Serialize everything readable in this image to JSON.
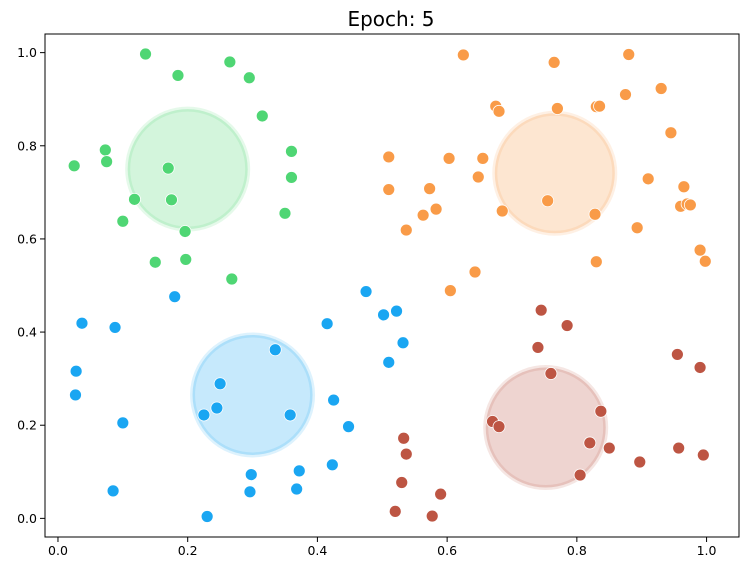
{
  "chart_data": {
    "type": "scatter",
    "title": "Epoch: 5",
    "xlabel": "",
    "ylabel": "",
    "xlim": [
      -0.02,
      1.05
    ],
    "ylim": [
      -0.04,
      1.04
    ],
    "xticks": [
      "0.0",
      "0.2",
      "0.4",
      "0.6",
      "0.8",
      "1.0"
    ],
    "yticks": [
      "0.0",
      "0.2",
      "0.4",
      "0.6",
      "0.8",
      "1.0"
    ],
    "grid": false,
    "legend": "none",
    "series": [
      {
        "color": "#4fd674",
        "points": [
          [
            0.135,
            0.997
          ],
          [
            0.185,
            0.951
          ],
          [
            0.265,
            0.98
          ],
          [
            0.295,
            0.946
          ],
          [
            0.315,
            0.864
          ],
          [
            0.025,
            0.757
          ],
          [
            0.073,
            0.791
          ],
          [
            0.075,
            0.766
          ],
          [
            0.17,
            0.752
          ],
          [
            0.36,
            0.788
          ],
          [
            0.36,
            0.732
          ],
          [
            0.118,
            0.685
          ],
          [
            0.175,
            0.684
          ],
          [
            0.35,
            0.655
          ],
          [
            0.1,
            0.638
          ],
          [
            0.196,
            0.616
          ],
          [
            0.15,
            0.55
          ],
          [
            0.197,
            0.556
          ],
          [
            0.268,
            0.514
          ]
        ]
      },
      {
        "color": "#f99b48",
        "points": [
          [
            0.625,
            0.995
          ],
          [
            0.765,
            0.979
          ],
          [
            0.88,
            0.996
          ],
          [
            0.93,
            0.923
          ],
          [
            0.675,
            0.885
          ],
          [
            0.68,
            0.874
          ],
          [
            0.77,
            0.88
          ],
          [
            0.83,
            0.884
          ],
          [
            0.835,
            0.885
          ],
          [
            0.875,
            0.91
          ],
          [
            0.945,
            0.828
          ],
          [
            0.51,
            0.776
          ],
          [
            0.603,
            0.773
          ],
          [
            0.655,
            0.773
          ],
          [
            0.648,
            0.733
          ],
          [
            0.91,
            0.729
          ],
          [
            0.965,
            0.712
          ],
          [
            0.51,
            0.706
          ],
          [
            0.573,
            0.708
          ],
          [
            0.755,
            0.682
          ],
          [
            0.96,
            0.67
          ],
          [
            0.97,
            0.675
          ],
          [
            0.975,
            0.673
          ],
          [
            0.685,
            0.66
          ],
          [
            0.583,
            0.664
          ],
          [
            0.563,
            0.651
          ],
          [
            0.828,
            0.653
          ],
          [
            0.537,
            0.619
          ],
          [
            0.893,
            0.624
          ],
          [
            0.99,
            0.576
          ],
          [
            0.83,
            0.551
          ],
          [
            0.998,
            0.552
          ],
          [
            0.643,
            0.529
          ],
          [
            0.605,
            0.489
          ]
        ]
      },
      {
        "color": "#1aa6f2",
        "points": [
          [
            0.18,
            0.476
          ],
          [
            0.475,
            0.487
          ],
          [
            0.037,
            0.419
          ],
          [
            0.088,
            0.41
          ],
          [
            0.415,
            0.418
          ],
          [
            0.502,
            0.437
          ],
          [
            0.522,
            0.445
          ],
          [
            0.532,
            0.377
          ],
          [
            0.335,
            0.362
          ],
          [
            0.51,
            0.335
          ],
          [
            0.028,
            0.316
          ],
          [
            0.25,
            0.289
          ],
          [
            0.027,
            0.265
          ],
          [
            0.425,
            0.254
          ],
          [
            0.245,
            0.237
          ],
          [
            0.225,
            0.222
          ],
          [
            0.358,
            0.222
          ],
          [
            0.1,
            0.205
          ],
          [
            0.448,
            0.197
          ],
          [
            0.423,
            0.115
          ],
          [
            0.372,
            0.102
          ],
          [
            0.298,
            0.094
          ],
          [
            0.085,
            0.059
          ],
          [
            0.296,
            0.057
          ],
          [
            0.368,
            0.063
          ],
          [
            0.23,
            0.004
          ]
        ]
      },
      {
        "color": "#bd5543",
        "points": [
          [
            0.745,
            0.447
          ],
          [
            0.785,
            0.414
          ],
          [
            0.74,
            0.367
          ],
          [
            0.955,
            0.352
          ],
          [
            0.99,
            0.324
          ],
          [
            0.76,
            0.311
          ],
          [
            0.837,
            0.23
          ],
          [
            0.67,
            0.208
          ],
          [
            0.68,
            0.197
          ],
          [
            0.533,
            0.172
          ],
          [
            0.82,
            0.162
          ],
          [
            0.85,
            0.151
          ],
          [
            0.957,
            0.151
          ],
          [
            0.537,
            0.138
          ],
          [
            0.995,
            0.136
          ],
          [
            0.897,
            0.121
          ],
          [
            0.805,
            0.093
          ],
          [
            0.53,
            0.077
          ],
          [
            0.59,
            0.052
          ],
          [
            0.52,
            0.015
          ],
          [
            0.577,
            0.005
          ]
        ]
      }
    ],
    "centroids": [
      {
        "x": 0.2,
        "y": 0.75,
        "color": "#4fd674"
      },
      {
        "x": 0.766,
        "y": 0.741,
        "color": "#f99b48"
      },
      {
        "x": 0.3,
        "y": 0.265,
        "color": "#1aa6f2"
      },
      {
        "x": 0.752,
        "y": 0.195,
        "color": "#bd5543"
      }
    ]
  }
}
